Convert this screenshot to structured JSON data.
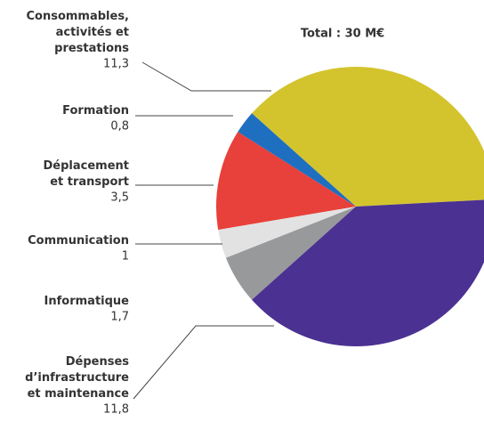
{
  "chart_data": {
    "type": "pie",
    "title": "Total : 30 M€",
    "categories": [
      "Consommables,\nactivités et\nprestations",
      "Formation",
      "Déplacement\net transport",
      "Communication",
      "Informatique",
      "Dépenses\nd’infrastructure\net maintenance"
    ],
    "values": [
      11.3,
      0.8,
      3.5,
      1,
      1.7,
      11.8
    ],
    "value_labels": [
      "11,3",
      "0,8",
      "3,5",
      "1",
      "1,7",
      "11,8"
    ],
    "colors": [
      "#d3c42e",
      "#1f6fc0",
      "#e8403a",
      "#e2e2e2",
      "#98999b",
      "#4b3192"
    ]
  }
}
